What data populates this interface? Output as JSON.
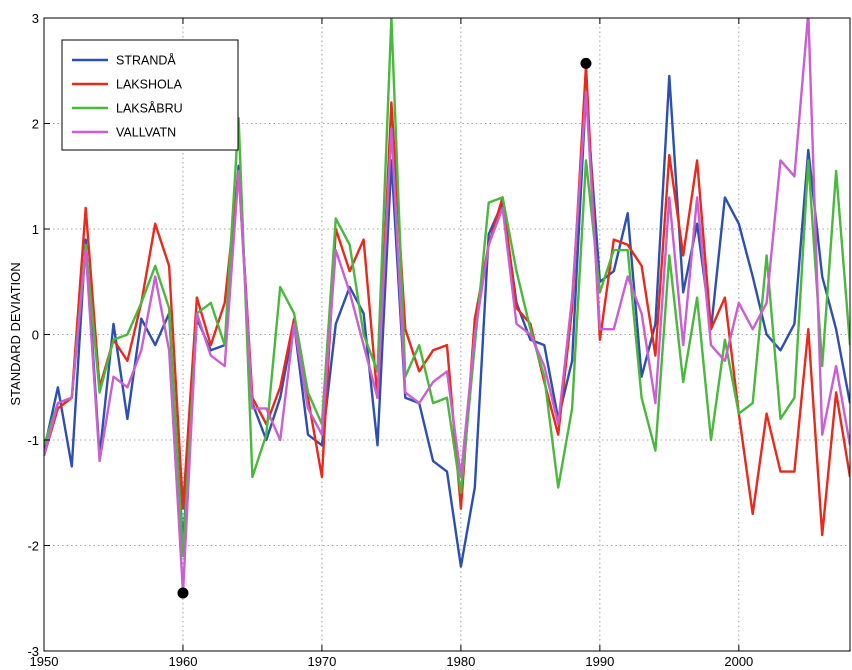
{
  "chart_data": {
    "type": "line",
    "title": "",
    "xlabel": "",
    "ylabel": "STANDARD DEVIATION",
    "xlim": [
      1950,
      2008
    ],
    "ylim": [
      -3,
      3
    ],
    "x_ticks": [
      1950,
      1960,
      1970,
      1980,
      1990,
      2000
    ],
    "y_ticks": [
      -3,
      -2,
      -1,
      0,
      1,
      2,
      3
    ],
    "grid": true,
    "legend_position": "top-left",
    "x": [
      1950,
      1951,
      1952,
      1953,
      1954,
      1955,
      1956,
      1957,
      1958,
      1959,
      1960,
      1961,
      1962,
      1963,
      1964,
      1965,
      1966,
      1967,
      1968,
      1969,
      1970,
      1971,
      1972,
      1973,
      1974,
      1975,
      1976,
      1977,
      1978,
      1979,
      1980,
      1981,
      1982,
      1983,
      1984,
      1985,
      1986,
      1987,
      1988,
      1989,
      1990,
      1991,
      1992,
      1993,
      1994,
      1995,
      1996,
      1997,
      1998,
      1999,
      2000,
      2001,
      2002,
      2003,
      2004,
      2005,
      2006,
      2007,
      2008
    ],
    "series": [
      {
        "name": "STRANDÅ",
        "color": "#2c4fb0",
        "values": [
          -1.1,
          -0.5,
          -1.25,
          0.9,
          -1.15,
          0.1,
          -0.8,
          0.15,
          -0.1,
          0.2,
          -2.0,
          0.15,
          -0.15,
          -0.1,
          1.6,
          -0.65,
          -1.0,
          -0.6,
          0.1,
          -0.95,
          -1.05,
          0.1,
          0.45,
          0.2,
          -1.05,
          1.65,
          -0.6,
          -0.65,
          -1.2,
          -1.3,
          -2.2,
          -1.45,
          0.95,
          1.25,
          0.3,
          -0.05,
          -0.1,
          -0.8,
          -0.25,
          2.3,
          0.5,
          0.6,
          1.15,
          -0.4,
          0.1,
          2.45,
          0.4,
          1.05,
          0.05,
          1.3,
          1.05,
          0.55,
          0.0,
          -0.15,
          0.1,
          1.75,
          0.55,
          0.05,
          -0.65
        ]
      },
      {
        "name": "LAKSHOLA",
        "color": "#e8291c",
        "values": [
          -1.15,
          -0.7,
          -0.6,
          1.2,
          -0.5,
          -0.05,
          -0.25,
          0.3,
          1.05,
          0.65,
          -1.65,
          0.35,
          -0.1,
          0.3,
          1.55,
          -0.6,
          -0.85,
          -0.5,
          0.15,
          -0.6,
          -1.35,
          1.0,
          0.6,
          0.9,
          -0.6,
          2.2,
          0.05,
          -0.35,
          -0.15,
          -0.1,
          -1.65,
          0.15,
          0.85,
          1.3,
          0.25,
          0.1,
          -0.45,
          -0.95,
          0.25,
          2.55,
          -0.05,
          0.9,
          0.85,
          0.65,
          -0.2,
          1.7,
          0.75,
          1.65,
          0.05,
          0.35,
          -0.75,
          -1.7,
          -0.75,
          -1.3,
          -1.3,
          0.05,
          -1.9,
          -0.55,
          -1.35
        ]
      },
      {
        "name": "LAKSÅBRU",
        "color": "#49b83c",
        "values": [
          -1.05,
          -0.65,
          -0.6,
          0.85,
          -0.55,
          -0.05,
          0.0,
          0.3,
          0.65,
          0.25,
          -2.1,
          0.2,
          0.3,
          -0.1,
          2.05,
          -1.35,
          -0.95,
          0.45,
          0.2,
          -0.55,
          -0.85,
          1.1,
          0.85,
          0.0,
          -0.35,
          3.0,
          -0.4,
          -0.1,
          -0.65,
          -0.6,
          -1.5,
          -0.1,
          1.25,
          1.3,
          0.6,
          0.05,
          -0.4,
          -1.45,
          -0.7,
          1.65,
          0.4,
          0.8,
          0.8,
          -0.6,
          -1.1,
          0.75,
          -0.45,
          0.35,
          -1.0,
          -0.05,
          -0.75,
          -0.65,
          0.75,
          -0.8,
          -0.6,
          1.65,
          -0.3,
          1.55,
          -0.1
        ]
      },
      {
        "name": "VALLVATN",
        "color": "#c95fd0",
        "values": [
          -1.15,
          -0.65,
          -0.6,
          0.8,
          -1.2,
          -0.4,
          -0.5,
          -0.15,
          0.55,
          -0.15,
          -2.45,
          0.2,
          -0.2,
          -0.3,
          1.55,
          -0.7,
          -0.7,
          -1.0,
          0.1,
          -0.7,
          -0.95,
          0.8,
          0.4,
          -0.1,
          -0.6,
          1.95,
          -0.55,
          -0.65,
          -0.45,
          -0.35,
          -1.35,
          0.0,
          0.85,
          1.2,
          0.1,
          0.0,
          -0.3,
          -0.85,
          0.35,
          2.3,
          0.05,
          0.05,
          0.55,
          0.2,
          -0.65,
          1.3,
          -0.1,
          1.3,
          -0.1,
          -0.25,
          0.3,
          0.05,
          0.3,
          1.65,
          1.5,
          3.05,
          -0.95,
          -0.3,
          -1.05
        ]
      }
    ],
    "markers": [
      {
        "x": 1960,
        "y": -2.45,
        "color": "#000000"
      },
      {
        "x": 1989,
        "y": 2.57,
        "color": "#000000"
      }
    ]
  }
}
